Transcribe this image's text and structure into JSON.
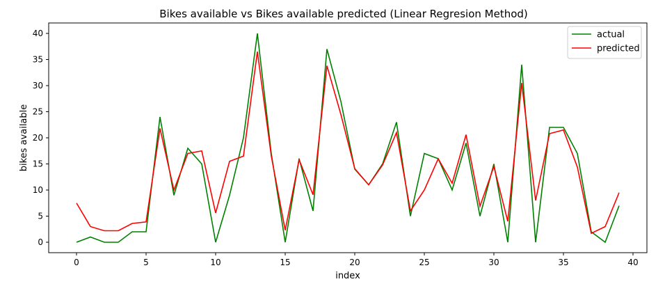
{
  "chart_data": {
    "type": "line",
    "title": "Bikes available vs Bikes available predicted (Linear Regresion Method)",
    "xlabel": "index",
    "ylabel": "bikes available",
    "xlim": [
      -2,
      41
    ],
    "ylim": [
      -2,
      42
    ],
    "xticks": [
      0,
      5,
      10,
      15,
      20,
      25,
      30,
      35,
      40
    ],
    "yticks": [
      0,
      5,
      10,
      15,
      20,
      25,
      30,
      35,
      40
    ],
    "grid": false,
    "legend_position": "top-right",
    "x": [
      0,
      1,
      2,
      3,
      4,
      5,
      6,
      7,
      8,
      9,
      10,
      11,
      12,
      13,
      14,
      15,
      16,
      17,
      18,
      19,
      20,
      21,
      22,
      23,
      24,
      25,
      26,
      27,
      28,
      29,
      30,
      31,
      32,
      33,
      34,
      35,
      36,
      37,
      38,
      39
    ],
    "series": [
      {
        "name": "actual",
        "color": "#008000",
        "values": [
          0,
          1,
          0,
          0,
          2,
          2,
          24,
          9,
          18,
          15,
          0,
          9,
          20,
          40,
          17,
          0,
          16,
          6,
          37,
          27,
          14,
          11,
          15,
          23,
          5,
          17,
          16,
          10,
          19,
          5,
          15,
          0,
          34,
          0,
          22,
          22,
          17,
          2,
          0,
          7
        ]
      },
      {
        "name": "predicted",
        "color": "#ff0000",
        "values": [
          7.5,
          3,
          2.2,
          2.2,
          3.6,
          3.9,
          21.8,
          10,
          17,
          17.5,
          5.6,
          15.5,
          16.5,
          36.5,
          16.5,
          2.3,
          15.8,
          9.1,
          33.8,
          24.5,
          14.1,
          11,
          14.8,
          21,
          6,
          10,
          16,
          11.3,
          20.6,
          6.9,
          14.5,
          4,
          30.5,
          8,
          20.8,
          21.5,
          14.4,
          1.7,
          3,
          9.5
        ]
      }
    ]
  }
}
